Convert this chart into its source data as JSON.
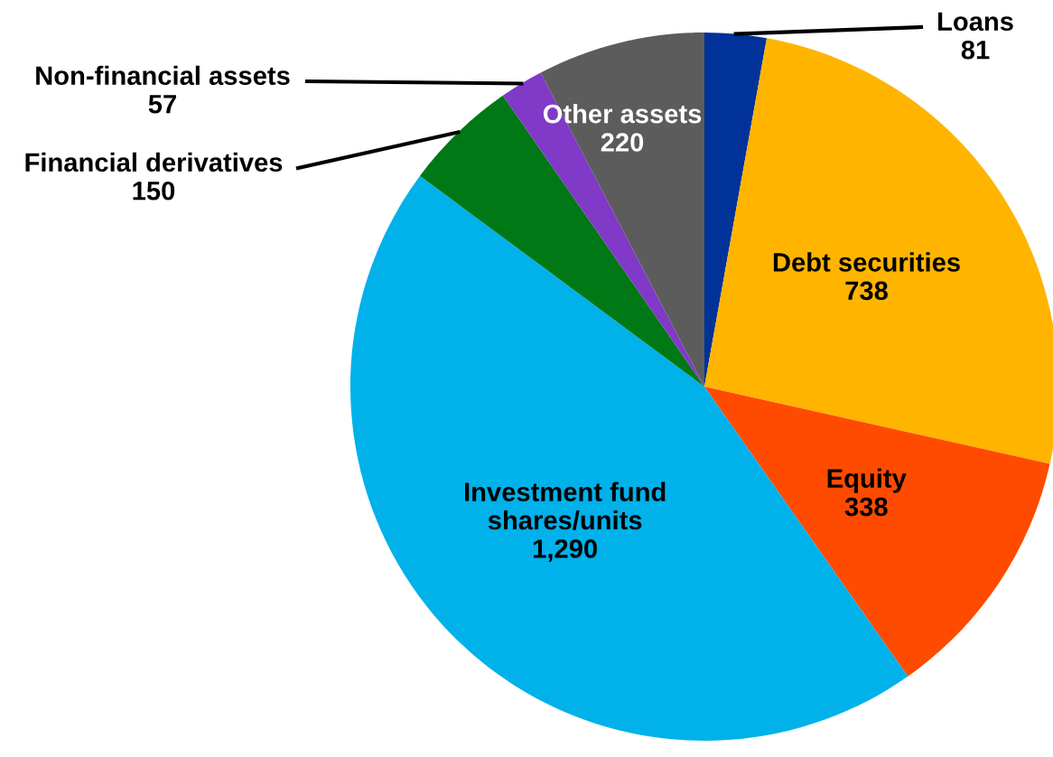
{
  "chart_data": {
    "type": "pie",
    "categories": [
      "Loans",
      "Debt securities",
      "Equity",
      "Investment fund\nshares/units",
      "Financial derivatives",
      "Non-financial assets",
      "Other assets"
    ],
    "values": [
      81,
      738,
      338,
      1290,
      150,
      57,
      220
    ],
    "colors": [
      "#003299",
      "#ffb400",
      "#ff4b00",
      "#00b1ea",
      "#007816",
      "#8139c7",
      "#5c5c5c"
    ],
    "value_labels": [
      "81",
      "738",
      "338",
      "1,290",
      "150",
      "57",
      "220"
    ]
  }
}
